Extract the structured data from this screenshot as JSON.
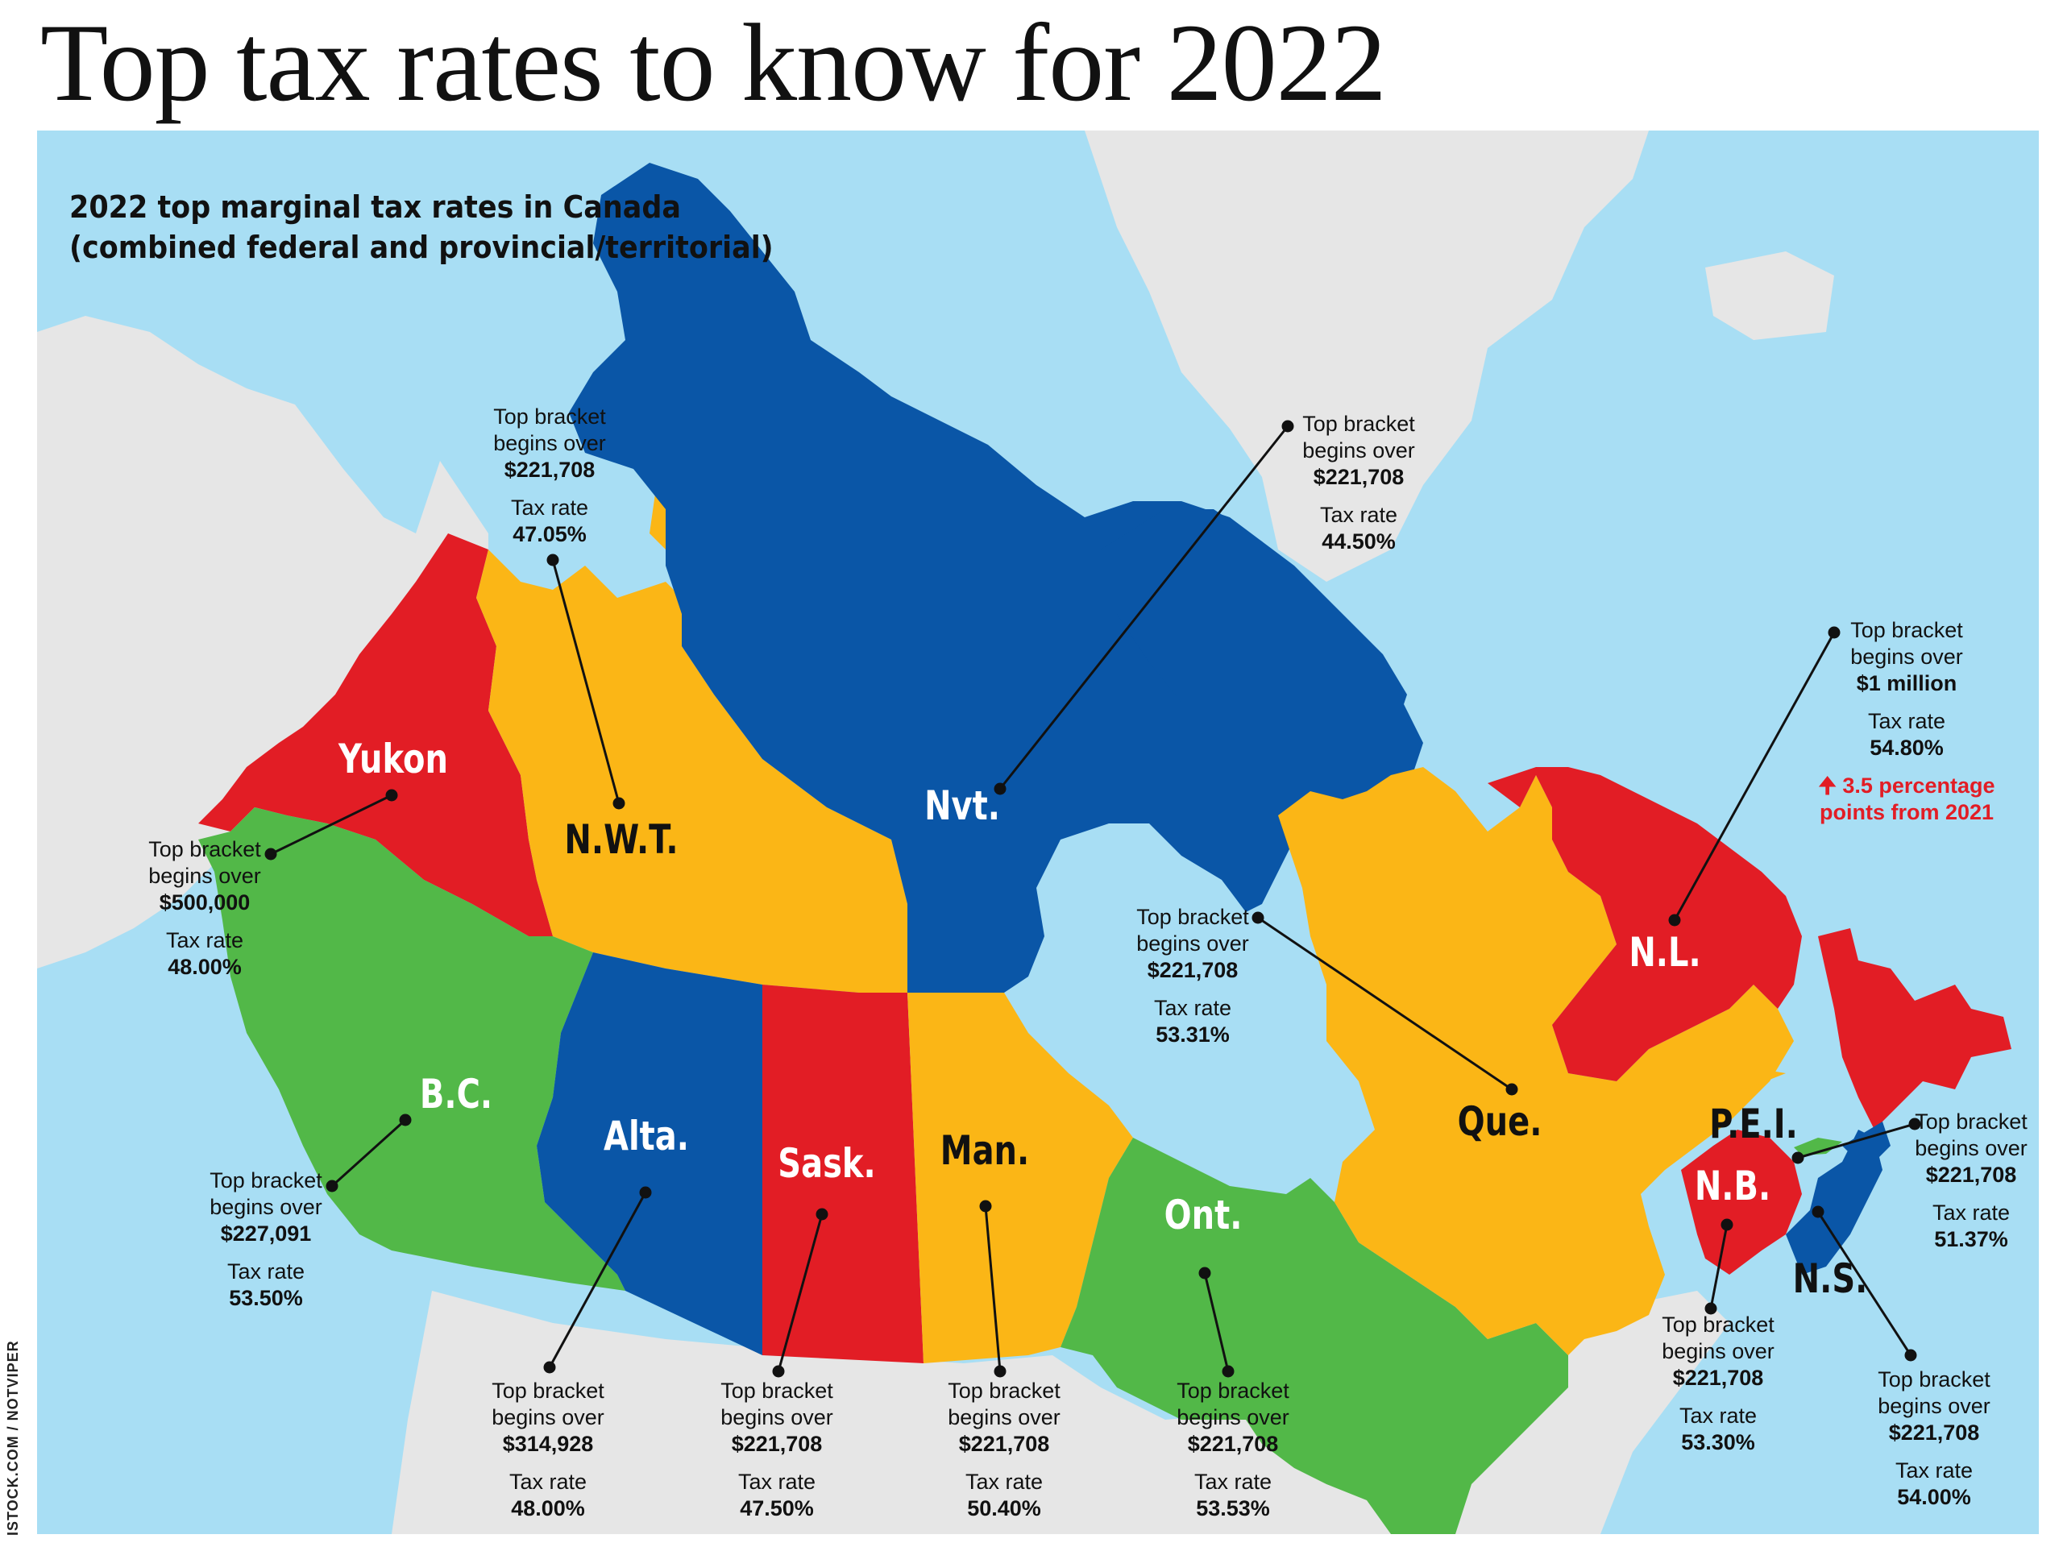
{
  "title": "Top tax rates to know for 2022",
  "subtitle": {
    "line1": "2022 top marginal tax rates in Canada",
    "line2": "(combined federal and provincial/territorial)"
  },
  "credit": "ISTOCK.COM / NOTVIPER",
  "colors": {
    "water": "#a8def4",
    "foreign_land": "#e6e6e6",
    "red": "#e21d25",
    "yellow": "#fbb616",
    "blue": "#0a56a7",
    "green": "#52b848"
  },
  "regions": [
    {
      "key": "yukon",
      "label": "Yukon",
      "color": "red",
      "info": {
        "bracket_label": "Top bracket begins over",
        "bracket": "$500,000",
        "rate_label": "Tax rate",
        "rate": "48.00%"
      }
    },
    {
      "key": "nwt",
      "label": "N.W.T.",
      "color": "yellow",
      "info": {
        "bracket_label": "Top bracket begins over",
        "bracket": "$221,708",
        "rate_label": "Tax rate",
        "rate": "47.05%"
      }
    },
    {
      "key": "nvt",
      "label": "Nvt.",
      "color": "blue",
      "info": {
        "bracket_label": "Top bracket begins over",
        "bracket": "$221,708",
        "rate_label": "Tax rate",
        "rate": "44.50%"
      }
    },
    {
      "key": "bc",
      "label": "B.C.",
      "color": "green",
      "info": {
        "bracket_label": "Top bracket begins over",
        "bracket": "$227,091",
        "rate_label": "Tax rate",
        "rate": "53.50%"
      }
    },
    {
      "key": "alta",
      "label": "Alta.",
      "color": "blue",
      "info": {
        "bracket_label": "Top bracket begins over",
        "bracket": "$314,928",
        "rate_label": "Tax rate",
        "rate": "48.00%"
      }
    },
    {
      "key": "sask",
      "label": "Sask.",
      "color": "red",
      "info": {
        "bracket_label": "Top bracket begins over",
        "bracket": "$221,708",
        "rate_label": "Tax rate",
        "rate": "47.50%"
      }
    },
    {
      "key": "man",
      "label": "Man.",
      "color": "yellow",
      "info": {
        "bracket_label": "Top bracket begins over",
        "bracket": "$221,708",
        "rate_label": "Tax rate",
        "rate": "50.40%"
      }
    },
    {
      "key": "ont",
      "label": "Ont.",
      "color": "green",
      "info": {
        "bracket_label": "Top bracket begins over",
        "bracket": "$221,708",
        "rate_label": "Tax rate",
        "rate": "53.53%"
      }
    },
    {
      "key": "que",
      "label": "Que.",
      "color": "yellow",
      "info": {
        "bracket_label": "Top bracket begins over",
        "bracket": "$221,708",
        "rate_label": "Tax rate",
        "rate": "53.31%"
      }
    },
    {
      "key": "nl",
      "label": "N.L.",
      "color": "red",
      "info": {
        "bracket_label": "Top bracket begins over",
        "bracket": "$1 million",
        "rate_label": "Tax rate",
        "rate": "54.80%",
        "change_note": "🠉 3.5 percentage points from 2021"
      }
    },
    {
      "key": "pei",
      "label": "P.E.I.",
      "color": "green",
      "info": {
        "bracket_label": "Top bracket begins over",
        "bracket": "$221,708",
        "rate_label": "Tax rate",
        "rate": "51.37%"
      }
    },
    {
      "key": "nb",
      "label": "N.B.",
      "color": "red",
      "info": {
        "bracket_label": "Top bracket begins over",
        "bracket": "$221,708",
        "rate_label": "Tax rate",
        "rate": "53.30%"
      }
    },
    {
      "key": "ns",
      "label": "N.S.",
      "color": "blue",
      "info": {
        "bracket_label": "Top bracket begins over",
        "bracket": "$221,708",
        "rate_label": "Tax rate",
        "rate": "54.00%"
      }
    }
  ]
}
